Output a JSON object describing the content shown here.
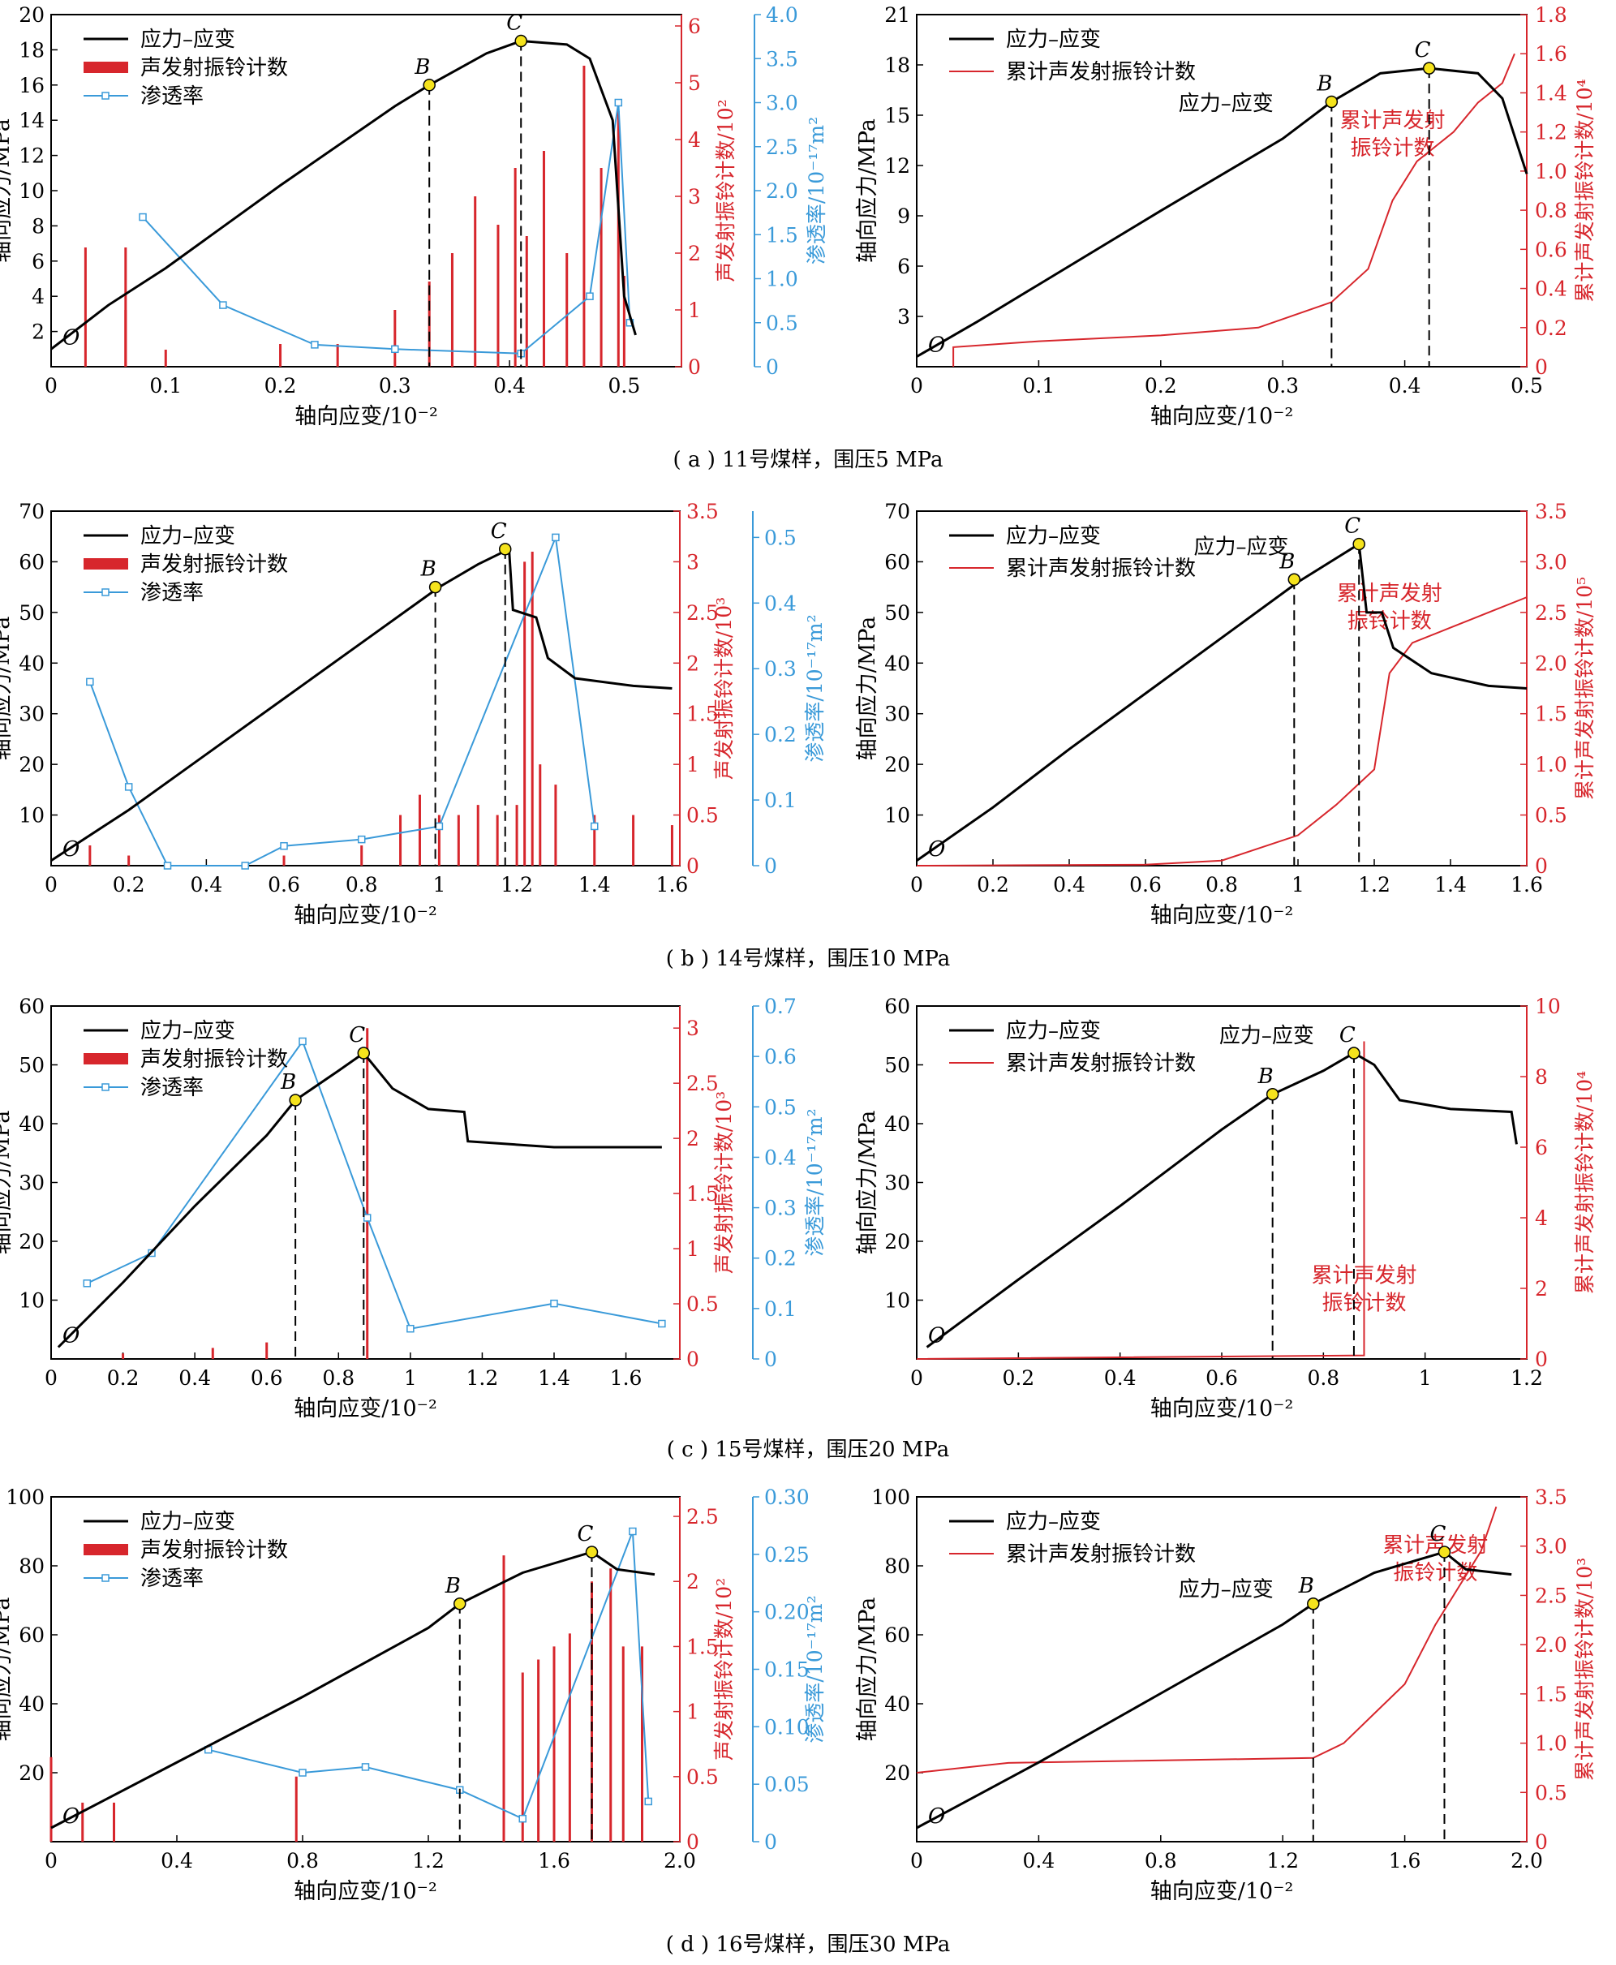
{
  "colors": {
    "stress": "#000000",
    "ae": "#d7262c",
    "perm": "#3a9ad9",
    "point": "#f5e31c"
  },
  "common": {
    "xlabel": "轴向应变/10⁻²",
    "ylabel_left": "轴向应力/MPa",
    "ylabel_ae": "声发射振铃计数/",
    "ylabel_perm": "渗透率/10⁻¹⁷m²",
    "ylabel_cum": "累计声发射振铃计数/",
    "legend_stress": "应力–应变",
    "legend_ae": "声发射振铃计数",
    "legend_perm": "渗透率",
    "legend_cum": "累计声发射振铃计数",
    "origin": "O",
    "point_b": "B",
    "point_c": "C",
    "annot_stress": "应力–应变",
    "annot_cum_1": "累计声发射",
    "annot_cum_2": "振铃计数"
  },
  "captions": [
    "( a ) 11号煤样，围压5 MPa",
    "( b ) 14号煤样，围压10 MPa",
    "( c ) 15号煤样，围压20 MPa",
    "( d ) 16号煤样，围压30 MPa"
  ],
  "chart_data": [
    {
      "type": "line",
      "panel": "a-left",
      "caption": "( a ) 11号煤样，围压5 MPa",
      "xlim": [
        0,
        0.55
      ],
      "xticks": [
        0,
        0.1,
        0.2,
        0.3,
        0.4,
        0.5
      ],
      "ylim": [
        0,
        20
      ],
      "yticks": [
        2,
        4,
        6,
        8,
        10,
        12,
        14,
        16,
        18,
        20
      ],
      "ae_lim": [
        0,
        6.2
      ],
      "ae_ticks": [
        0,
        1,
        2,
        3,
        4,
        5,
        6
      ],
      "ae_unit": "10²",
      "perm_lim": [
        0,
        4.0
      ],
      "perm_ticks": [
        "0",
        "0.5",
        "1.0",
        "1.5",
        "2.0",
        "2.5",
        "3.0",
        "3.5",
        "4.0"
      ],
      "stress": [
        [
          0.0,
          1.0
        ],
        [
          0.05,
          3.5
        ],
        [
          0.1,
          5.6
        ],
        [
          0.2,
          10.3
        ],
        [
          0.3,
          14.8
        ],
        [
          0.33,
          16.0
        ],
        [
          0.38,
          17.8
        ],
        [
          0.41,
          18.5
        ],
        [
          0.45,
          18.3
        ],
        [
          0.47,
          17.5
        ],
        [
          0.49,
          14.0
        ],
        [
          0.495,
          9.0
        ],
        [
          0.5,
          4.0
        ],
        [
          0.51,
          1.8
        ]
      ],
      "B": [
        0.33,
        16.0
      ],
      "C": [
        0.41,
        18.5
      ],
      "perm": [
        [
          0.08,
          1.7
        ],
        [
          0.15,
          0.7
        ],
        [
          0.23,
          0.25
        ],
        [
          0.3,
          0.2
        ],
        [
          0.41,
          0.15
        ],
        [
          0.47,
          0.8
        ],
        [
          0.495,
          3.0
        ],
        [
          0.505,
          0.5
        ]
      ],
      "ae": [
        [
          0.03,
          2.1
        ],
        [
          0.065,
          2.1
        ],
        [
          0.065,
          1.0
        ],
        [
          0.1,
          0.3
        ],
        [
          0.2,
          0.4
        ],
        [
          0.25,
          0.4
        ],
        [
          0.3,
          1.0
        ],
        [
          0.33,
          1.5
        ],
        [
          0.35,
          2.0
        ],
        [
          0.37,
          3.0
        ],
        [
          0.39,
          2.5
        ],
        [
          0.405,
          3.5
        ],
        [
          0.415,
          2.3
        ],
        [
          0.43,
          3.8
        ],
        [
          0.45,
          2.0
        ],
        [
          0.465,
          5.3
        ],
        [
          0.48,
          3.5
        ],
        [
          0.495,
          4.5
        ],
        [
          0.5,
          1.6
        ]
      ]
    },
    {
      "type": "line",
      "panel": "a-right",
      "caption": "( a ) 11号煤样，围压5 MPa",
      "xlim": [
        0,
        0.5
      ],
      "xticks": [
        0,
        0.1,
        0.2,
        0.3,
        0.4,
        0.5
      ],
      "ylim": [
        0,
        21
      ],
      "yticks": [
        3,
        6,
        9,
        12,
        15,
        18,
        21
      ],
      "cum_lim": [
        0,
        1.8
      ],
      "cum_ticks": [
        "0",
        "0.2",
        "0.4",
        "0.6",
        "0.8",
        "1.0",
        "1.2",
        "1.4",
        "1.6",
        "1.8"
      ],
      "cum_unit": "10⁴",
      "stress": [
        [
          0.0,
          0.6
        ],
        [
          0.05,
          2.7
        ],
        [
          0.1,
          4.9
        ],
        [
          0.2,
          9.3
        ],
        [
          0.3,
          13.6
        ],
        [
          0.34,
          15.8
        ],
        [
          0.38,
          17.5
        ],
        [
          0.42,
          17.8
        ],
        [
          0.46,
          17.5
        ],
        [
          0.48,
          16.0
        ],
        [
          0.5,
          11.5
        ]
      ],
      "B": [
        0.34,
        15.8
      ],
      "C": [
        0.42,
        17.8
      ],
      "cum": [
        [
          0.03,
          0.0
        ],
        [
          0.03,
          0.1
        ],
        [
          0.1,
          0.13
        ],
        [
          0.2,
          0.16
        ],
        [
          0.28,
          0.2
        ],
        [
          0.34,
          0.33
        ],
        [
          0.37,
          0.5
        ],
        [
          0.39,
          0.85
        ],
        [
          0.41,
          1.05
        ],
        [
          0.44,
          1.2
        ],
        [
          0.46,
          1.35
        ],
        [
          0.48,
          1.45
        ],
        [
          0.49,
          1.6
        ]
      ]
    },
    {
      "type": "line",
      "panel": "b-left",
      "caption": "( b ) 14号煤样，围压10 MPa",
      "xlim": [
        0,
        1.62
      ],
      "xticks": [
        0,
        0.2,
        0.4,
        0.6,
        0.8,
        1.0,
        1.2,
        1.4,
        1.6
      ],
      "ylim": [
        0,
        70
      ],
      "yticks": [
        10,
        20,
        30,
        40,
        50,
        60,
        70
      ],
      "ae_lim": [
        0,
        3.5
      ],
      "ae_ticks": [
        0,
        0.5,
        1.0,
        1.5,
        2.0,
        2.5,
        3.0,
        3.5
      ],
      "ae_unit": "10³",
      "perm_lim": [
        0,
        0.54
      ],
      "perm_ticks": [
        "0",
        "0.1",
        "0.2",
        "0.3",
        "0.4",
        "0.5"
      ],
      "stress": [
        [
          0.0,
          1.0
        ],
        [
          0.2,
          11.0
        ],
        [
          0.4,
          22.0
        ],
        [
          0.6,
          33.0
        ],
        [
          0.8,
          44.0
        ],
        [
          1.0,
          55.0
        ],
        [
          1.1,
          59.5
        ],
        [
          1.18,
          62.5
        ],
        [
          1.19,
          50.5
        ],
        [
          1.25,
          49.0
        ],
        [
          1.28,
          41.0
        ],
        [
          1.35,
          37.0
        ],
        [
          1.5,
          35.5
        ],
        [
          1.6,
          35.0
        ]
      ],
      "B": [
        0.99,
        55.0
      ],
      "C": [
        1.17,
        62.5
      ],
      "perm": [
        [
          0.1,
          0.28
        ],
        [
          0.2,
          0.12
        ],
        [
          0.3,
          0.0
        ],
        [
          0.5,
          0.0
        ],
        [
          0.6,
          0.03
        ],
        [
          0.8,
          0.04
        ],
        [
          1.0,
          0.06
        ],
        [
          1.3,
          0.5
        ],
        [
          1.4,
          0.06
        ]
      ],
      "ae": [
        [
          0.1,
          0.2
        ],
        [
          0.2,
          0.1
        ],
        [
          0.6,
          0.1
        ],
        [
          0.8,
          0.2
        ],
        [
          0.9,
          0.5
        ],
        [
          0.95,
          0.7
        ],
        [
          1.0,
          0.5
        ],
        [
          1.05,
          0.5
        ],
        [
          1.1,
          0.6
        ],
        [
          1.15,
          0.5
        ],
        [
          1.2,
          0.6
        ],
        [
          1.22,
          3.0
        ],
        [
          1.24,
          3.1
        ],
        [
          1.26,
          1.0
        ],
        [
          1.3,
          0.8
        ],
        [
          1.4,
          0.5
        ],
        [
          1.5,
          0.5
        ],
        [
          1.6,
          0.4
        ]
      ]
    },
    {
      "type": "line",
      "panel": "b-right",
      "caption": "( b ) 14号煤样，围压10 MPa",
      "xlim": [
        0,
        1.6
      ],
      "xticks": [
        0,
        0.2,
        0.4,
        0.6,
        0.8,
        1.0,
        1.2,
        1.4,
        1.6
      ],
      "ylim": [
        0,
        70
      ],
      "yticks": [
        10,
        20,
        30,
        40,
        50,
        60,
        70
      ],
      "cum_lim": [
        0,
        3.5
      ],
      "cum_ticks": [
        "0",
        "0.5",
        "1.0",
        "1.5",
        "2.0",
        "2.5",
        "3.0",
        "3.5"
      ],
      "cum_unit": "10⁵",
      "stress": [
        [
          0.0,
          1.0
        ],
        [
          0.2,
          11.5
        ],
        [
          0.4,
          23.0
        ],
        [
          0.6,
          34.0
        ],
        [
          0.8,
          45.0
        ],
        [
          1.0,
          56.0
        ],
        [
          1.16,
          63.5
        ],
        [
          1.18,
          50.0
        ],
        [
          1.22,
          50.0
        ],
        [
          1.25,
          43.0
        ],
        [
          1.35,
          38.0
        ],
        [
          1.5,
          35.5
        ],
        [
          1.6,
          35.0
        ]
      ],
      "B": [
        0.99,
        56.5
      ],
      "C": [
        1.16,
        63.5
      ],
      "cum": [
        [
          0.0,
          0.0
        ],
        [
          0.6,
          0.01
        ],
        [
          0.8,
          0.05
        ],
        [
          1.0,
          0.3
        ],
        [
          1.1,
          0.6
        ],
        [
          1.2,
          0.95
        ],
        [
          1.24,
          1.9
        ],
        [
          1.3,
          2.2
        ],
        [
          1.4,
          2.35
        ],
        [
          1.5,
          2.5
        ],
        [
          1.6,
          2.65
        ]
      ]
    },
    {
      "type": "line",
      "panel": "c-left",
      "caption": "( c ) 15号煤样，围压20 MPa",
      "xlim": [
        0,
        1.75
      ],
      "xticks": [
        0,
        0.2,
        0.4,
        0.6,
        0.8,
        1.0,
        1.2,
        1.4,
        1.6
      ],
      "ylim": [
        0,
        60
      ],
      "yticks": [
        10,
        20,
        30,
        40,
        50,
        60
      ],
      "ae_lim": [
        0,
        3.2
      ],
      "ae_ticks": [
        0,
        0.5,
        1.0,
        1.5,
        2.0,
        2.5,
        3.0
      ],
      "ae_unit": "10³",
      "perm_lim": [
        0,
        0.7
      ],
      "perm_ticks": [
        "0",
        "0.1",
        "0.2",
        "0.3",
        "0.4",
        "0.5",
        "0.6",
        "0.7"
      ],
      "stress": [
        [
          0.02,
          2.0
        ],
        [
          0.2,
          13.0
        ],
        [
          0.4,
          26.0
        ],
        [
          0.6,
          38.0
        ],
        [
          0.68,
          44.0
        ],
        [
          0.8,
          49.0
        ],
        [
          0.87,
          52.0
        ],
        [
          0.95,
          46.0
        ],
        [
          1.05,
          42.5
        ],
        [
          1.15,
          42.0
        ],
        [
          1.16,
          37.0
        ],
        [
          1.4,
          36.0
        ],
        [
          1.7,
          36.0
        ]
      ],
      "B": [
        0.68,
        44.0
      ],
      "C": [
        0.87,
        52.0
      ],
      "perm": [
        [
          0.1,
          0.15
        ],
        [
          0.28,
          0.21
        ],
        [
          0.7,
          0.63
        ],
        [
          0.88,
          0.28
        ],
        [
          1.0,
          0.06
        ],
        [
          1.4,
          0.11
        ],
        [
          1.7,
          0.07
        ]
      ],
      "ae": [
        [
          0.2,
          0.05
        ],
        [
          0.45,
          0.1
        ],
        [
          0.6,
          0.15
        ],
        [
          0.88,
          3.0
        ]
      ]
    },
    {
      "type": "line",
      "panel": "c-right",
      "caption": "( c ) 15号煤样，围压20 MPa",
      "xlim": [
        0,
        1.2
      ],
      "xticks": [
        0,
        0.2,
        0.4,
        0.6,
        0.8,
        1.0,
        1.2
      ],
      "ylim": [
        0,
        60
      ],
      "yticks": [
        10,
        20,
        30,
        40,
        50,
        60
      ],
      "cum_lim": [
        0,
        10
      ],
      "cum_ticks": [
        "0",
        "2",
        "4",
        "6",
        "8",
        "10"
      ],
      "cum_unit": "10⁴",
      "stress": [
        [
          0.02,
          2.0
        ],
        [
          0.2,
          13.5
        ],
        [
          0.4,
          26.0
        ],
        [
          0.6,
          39.0
        ],
        [
          0.7,
          45.0
        ],
        [
          0.8,
          49.0
        ],
        [
          0.86,
          52.0
        ],
        [
          0.9,
          50.0
        ],
        [
          0.95,
          44.0
        ],
        [
          1.05,
          42.5
        ],
        [
          1.17,
          42.0
        ],
        [
          1.18,
          36.5
        ]
      ],
      "B": [
        0.7,
        45.0
      ],
      "C": [
        0.86,
        52.0
      ],
      "cum": [
        [
          0.0,
          0.0
        ],
        [
          0.88,
          0.1
        ],
        [
          0.88,
          9.0
        ]
      ]
    },
    {
      "type": "line",
      "panel": "d-left",
      "caption": "( d ) 16号煤样，围压30 MPa",
      "xlim": [
        0,
        2.0
      ],
      "xticks": [
        "0",
        "0.4",
        "0.8",
        "1.2",
        "1.6",
        "2.0"
      ],
      "ylim": [
        0,
        100
      ],
      "yticks": [
        20,
        40,
        60,
        80,
        100
      ],
      "ae_lim": [
        0,
        2.65
      ],
      "ae_ticks": [
        0,
        0.5,
        1.0,
        1.5,
        2.0,
        2.5
      ],
      "ae_unit": "10²",
      "perm_lim": [
        0,
        0.3
      ],
      "perm_ticks": [
        "0",
        "0.05",
        "0.10",
        "0.15",
        "0.20",
        "0.25",
        "0.30"
      ],
      "stress": [
        [
          0.0,
          4.0
        ],
        [
          0.4,
          23.0
        ],
        [
          0.8,
          42.0
        ],
        [
          1.2,
          62.0
        ],
        [
          1.3,
          69.0
        ],
        [
          1.5,
          78.0
        ],
        [
          1.72,
          84.0
        ],
        [
          1.8,
          79.0
        ],
        [
          1.92,
          77.5
        ]
      ],
      "B": [
        1.3,
        69.0
      ],
      "C": [
        1.72,
        84.0
      ],
      "perm": [
        [
          0.5,
          0.08
        ],
        [
          0.8,
          0.06
        ],
        [
          1.0,
          0.065
        ],
        [
          1.3,
          0.045
        ],
        [
          1.5,
          0.02
        ],
        [
          1.85,
          0.27
        ],
        [
          1.9,
          0.035
        ]
      ],
      "ae": [
        [
          0.0,
          0.65
        ],
        [
          0.1,
          0.3
        ],
        [
          0.2,
          0.3
        ],
        [
          0.78,
          0.5
        ],
        [
          1.44,
          2.2
        ],
        [
          1.5,
          1.3
        ],
        [
          1.55,
          1.4
        ],
        [
          1.6,
          1.5
        ],
        [
          1.65,
          1.6
        ],
        [
          1.72,
          2.0
        ],
        [
          1.78,
          2.1
        ],
        [
          1.82,
          1.5
        ],
        [
          1.88,
          1.5
        ]
      ]
    },
    {
      "type": "line",
      "panel": "d-right",
      "caption": "( d ) 16号煤样，围压30 MPa",
      "xlim": [
        0,
        2.0
      ],
      "xticks": [
        "0",
        "0.4",
        "0.8",
        "1.2",
        "1.6",
        "2.0"
      ],
      "ylim": [
        0,
        100
      ],
      "yticks": [
        20,
        40,
        60,
        80,
        100
      ],
      "cum_lim": [
        0,
        3.5
      ],
      "cum_ticks": [
        "0",
        "0.5",
        "1.0",
        "1.5",
        "2.0",
        "2.5",
        "3.0",
        "3.5"
      ],
      "cum_unit": "10³",
      "stress": [
        [
          0.0,
          4.0
        ],
        [
          0.4,
          23.0
        ],
        [
          0.8,
          43.0
        ],
        [
          1.2,
          63.0
        ],
        [
          1.3,
          69.0
        ],
        [
          1.5,
          78.0
        ],
        [
          1.73,
          84.0
        ],
        [
          1.8,
          79.0
        ],
        [
          1.95,
          77.5
        ]
      ],
      "B": [
        1.3,
        69.0
      ],
      "C": [
        1.73,
        84.0
      ],
      "cum": [
        [
          0.0,
          0.7
        ],
        [
          0.3,
          0.8
        ],
        [
          1.3,
          0.85
        ],
        [
          1.4,
          1.0
        ],
        [
          1.5,
          1.3
        ],
        [
          1.6,
          1.6
        ],
        [
          1.7,
          2.2
        ],
        [
          1.78,
          2.6
        ],
        [
          1.85,
          2.95
        ],
        [
          1.9,
          3.4
        ]
      ]
    }
  ]
}
